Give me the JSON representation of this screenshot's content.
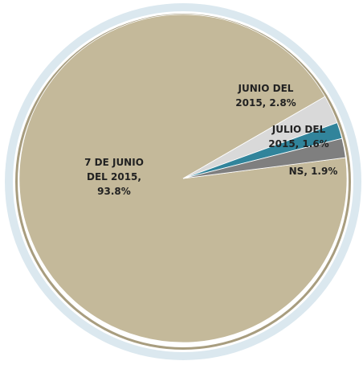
{
  "chart_data": {
    "type": "pie",
    "values": [
      93.8,
      2.8,
      1.6,
      1.9
    ],
    "value_labels": [
      "7 DE JUNIO DEL 2015, 93.8%",
      "JUNIO DEL 2015, 2.8%",
      "JULIO DEL 2015, 1.6%",
      "NS, 1.9%"
    ],
    "colors": [
      "#c4b99a",
      "#d9d9d9",
      "#31849b",
      "#7f7f7f"
    ]
  }
}
